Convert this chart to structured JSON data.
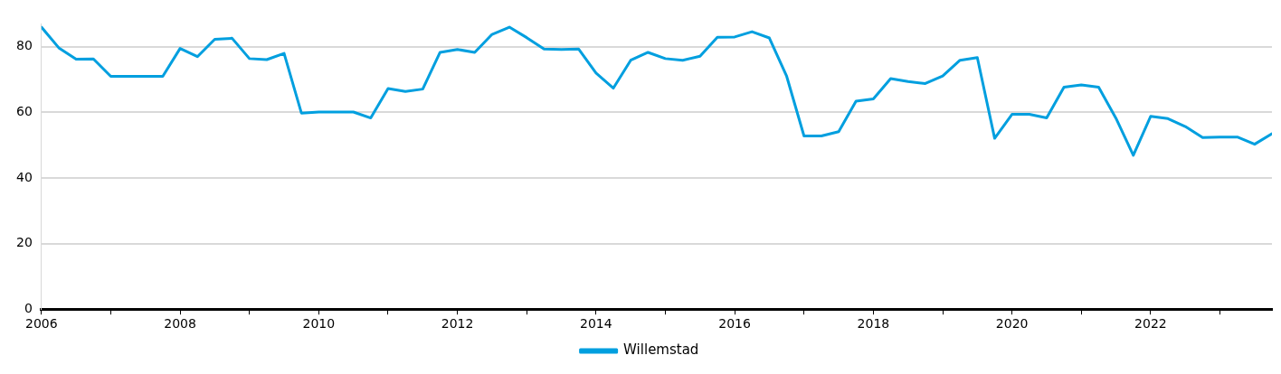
{
  "chart_data": {
    "type": "line",
    "xlim": [
      2006,
      2023.75
    ],
    "xticks": [
      2006,
      {
        "value": 2007,
        "label": null
      },
      2008,
      {
        "value": 2009,
        "label": null
      },
      2010,
      {
        "value": 2011,
        "label": null
      },
      2012,
      {
        "value": 2013,
        "label": null
      },
      2014,
      {
        "value": 2015,
        "label": null
      },
      2016,
      {
        "value": 2017,
        "label": null
      },
      2018,
      {
        "value": 2019,
        "label": null
      },
      2020,
      {
        "value": 2021,
        "label": null
      },
      2022,
      {
        "value": 2023,
        "label": null
      }
    ],
    "ylim": [
      0,
      87
    ],
    "yticks": [
      0,
      20,
      40,
      60,
      80
    ],
    "grid": "y",
    "legend": "bottom",
    "marker": "none",
    "line_style": "solid",
    "x": [
      2006,
      2006.25,
      2006.5,
      2006.75,
      2007,
      2007.25,
      2007.5,
      2007.75,
      2008,
      2008.25,
      2008.5,
      2008.75,
      2009,
      2009.25,
      2009.5,
      2009.75,
      2010,
      2010.25,
      2010.5,
      2010.75,
      2011,
      2011.25,
      2011.5,
      2011.75,
      2012,
      2012.25,
      2012.5,
      2012.75,
      2013,
      2013.25,
      2013.5,
      2013.75,
      2014,
      2014.25,
      2014.5,
      2014.75,
      2015,
      2015.25,
      2015.5,
      2015.75,
      2016,
      2016.25,
      2016.5,
      2016.75,
      2017,
      2017.25,
      2017.5,
      2017.75,
      2018,
      2018.25,
      2018.5,
      2018.75,
      2019,
      2019.25,
      2019.5,
      2019.75,
      2020,
      2020.25,
      2020.5,
      2020.75,
      2021,
      2021.25,
      2021.5,
      2021.75,
      2022,
      2022.25,
      2022.5,
      2022.75,
      2023,
      2023.25,
      2023.5,
      2023.75
    ],
    "series": [
      {
        "name": "Willemstad",
        "color": "#009fdf",
        "values": [
          86,
          79.7,
          76.2,
          76.3,
          71,
          71,
          71,
          71,
          79.5,
          77,
          82.3,
          82.6,
          76.4,
          76.1,
          78,
          59.8,
          60.1,
          60.1,
          60.1,
          58.3,
          67.3,
          66.4,
          67.1,
          78.3,
          79.2,
          78.3,
          83.8,
          86,
          82.8,
          79.3,
          79.2,
          79.3,
          72,
          67.4,
          75.9,
          78.3,
          76.4,
          75.9,
          77.1,
          82.9,
          83,
          84.6,
          82.7,
          71,
          52.8,
          52.8,
          54.1,
          63.4,
          64.1,
          70.3,
          69.4,
          68.8,
          71.1,
          75.9,
          76.7,
          52.1,
          59.4,
          59.4,
          58.3,
          67.7,
          68.4,
          67.7,
          58.2,
          46.9,
          58.8,
          58.1,
          55.7,
          52.3,
          52.5,
          52.5,
          50.3,
          53.5
        ]
      }
    ]
  }
}
